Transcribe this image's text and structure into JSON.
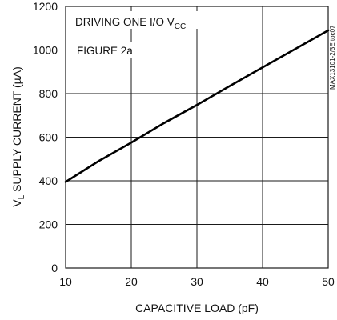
{
  "chart_data": {
    "type": "line",
    "xlabel": "CAPACITIVE LOAD (pF)",
    "ylabel": "V",
    "ylabel_sub": "L",
    "ylabel_rest": " SUPPLY CURRENT (µA)",
    "xlim": [
      10,
      50
    ],
    "ylim": [
      0,
      1200
    ],
    "x_ticks": [
      10,
      20,
      30,
      40,
      50
    ],
    "y_ticks": [
      0,
      200,
      400,
      600,
      800,
      1000,
      1200
    ],
    "grid": true,
    "annotations": {
      "line1_main": "DRIVING ONE I/O V",
      "line1_sub": "CC",
      "line2": "FIGURE 2a"
    },
    "side_code": "MAX13101-2/3E toc07",
    "series": [
      {
        "x": [
          10,
          15,
          20,
          25,
          30,
          35,
          40,
          45,
          50
        ],
        "y": [
          395,
          490,
          575,
          665,
          748,
          835,
          920,
          1005,
          1090
        ]
      }
    ]
  }
}
